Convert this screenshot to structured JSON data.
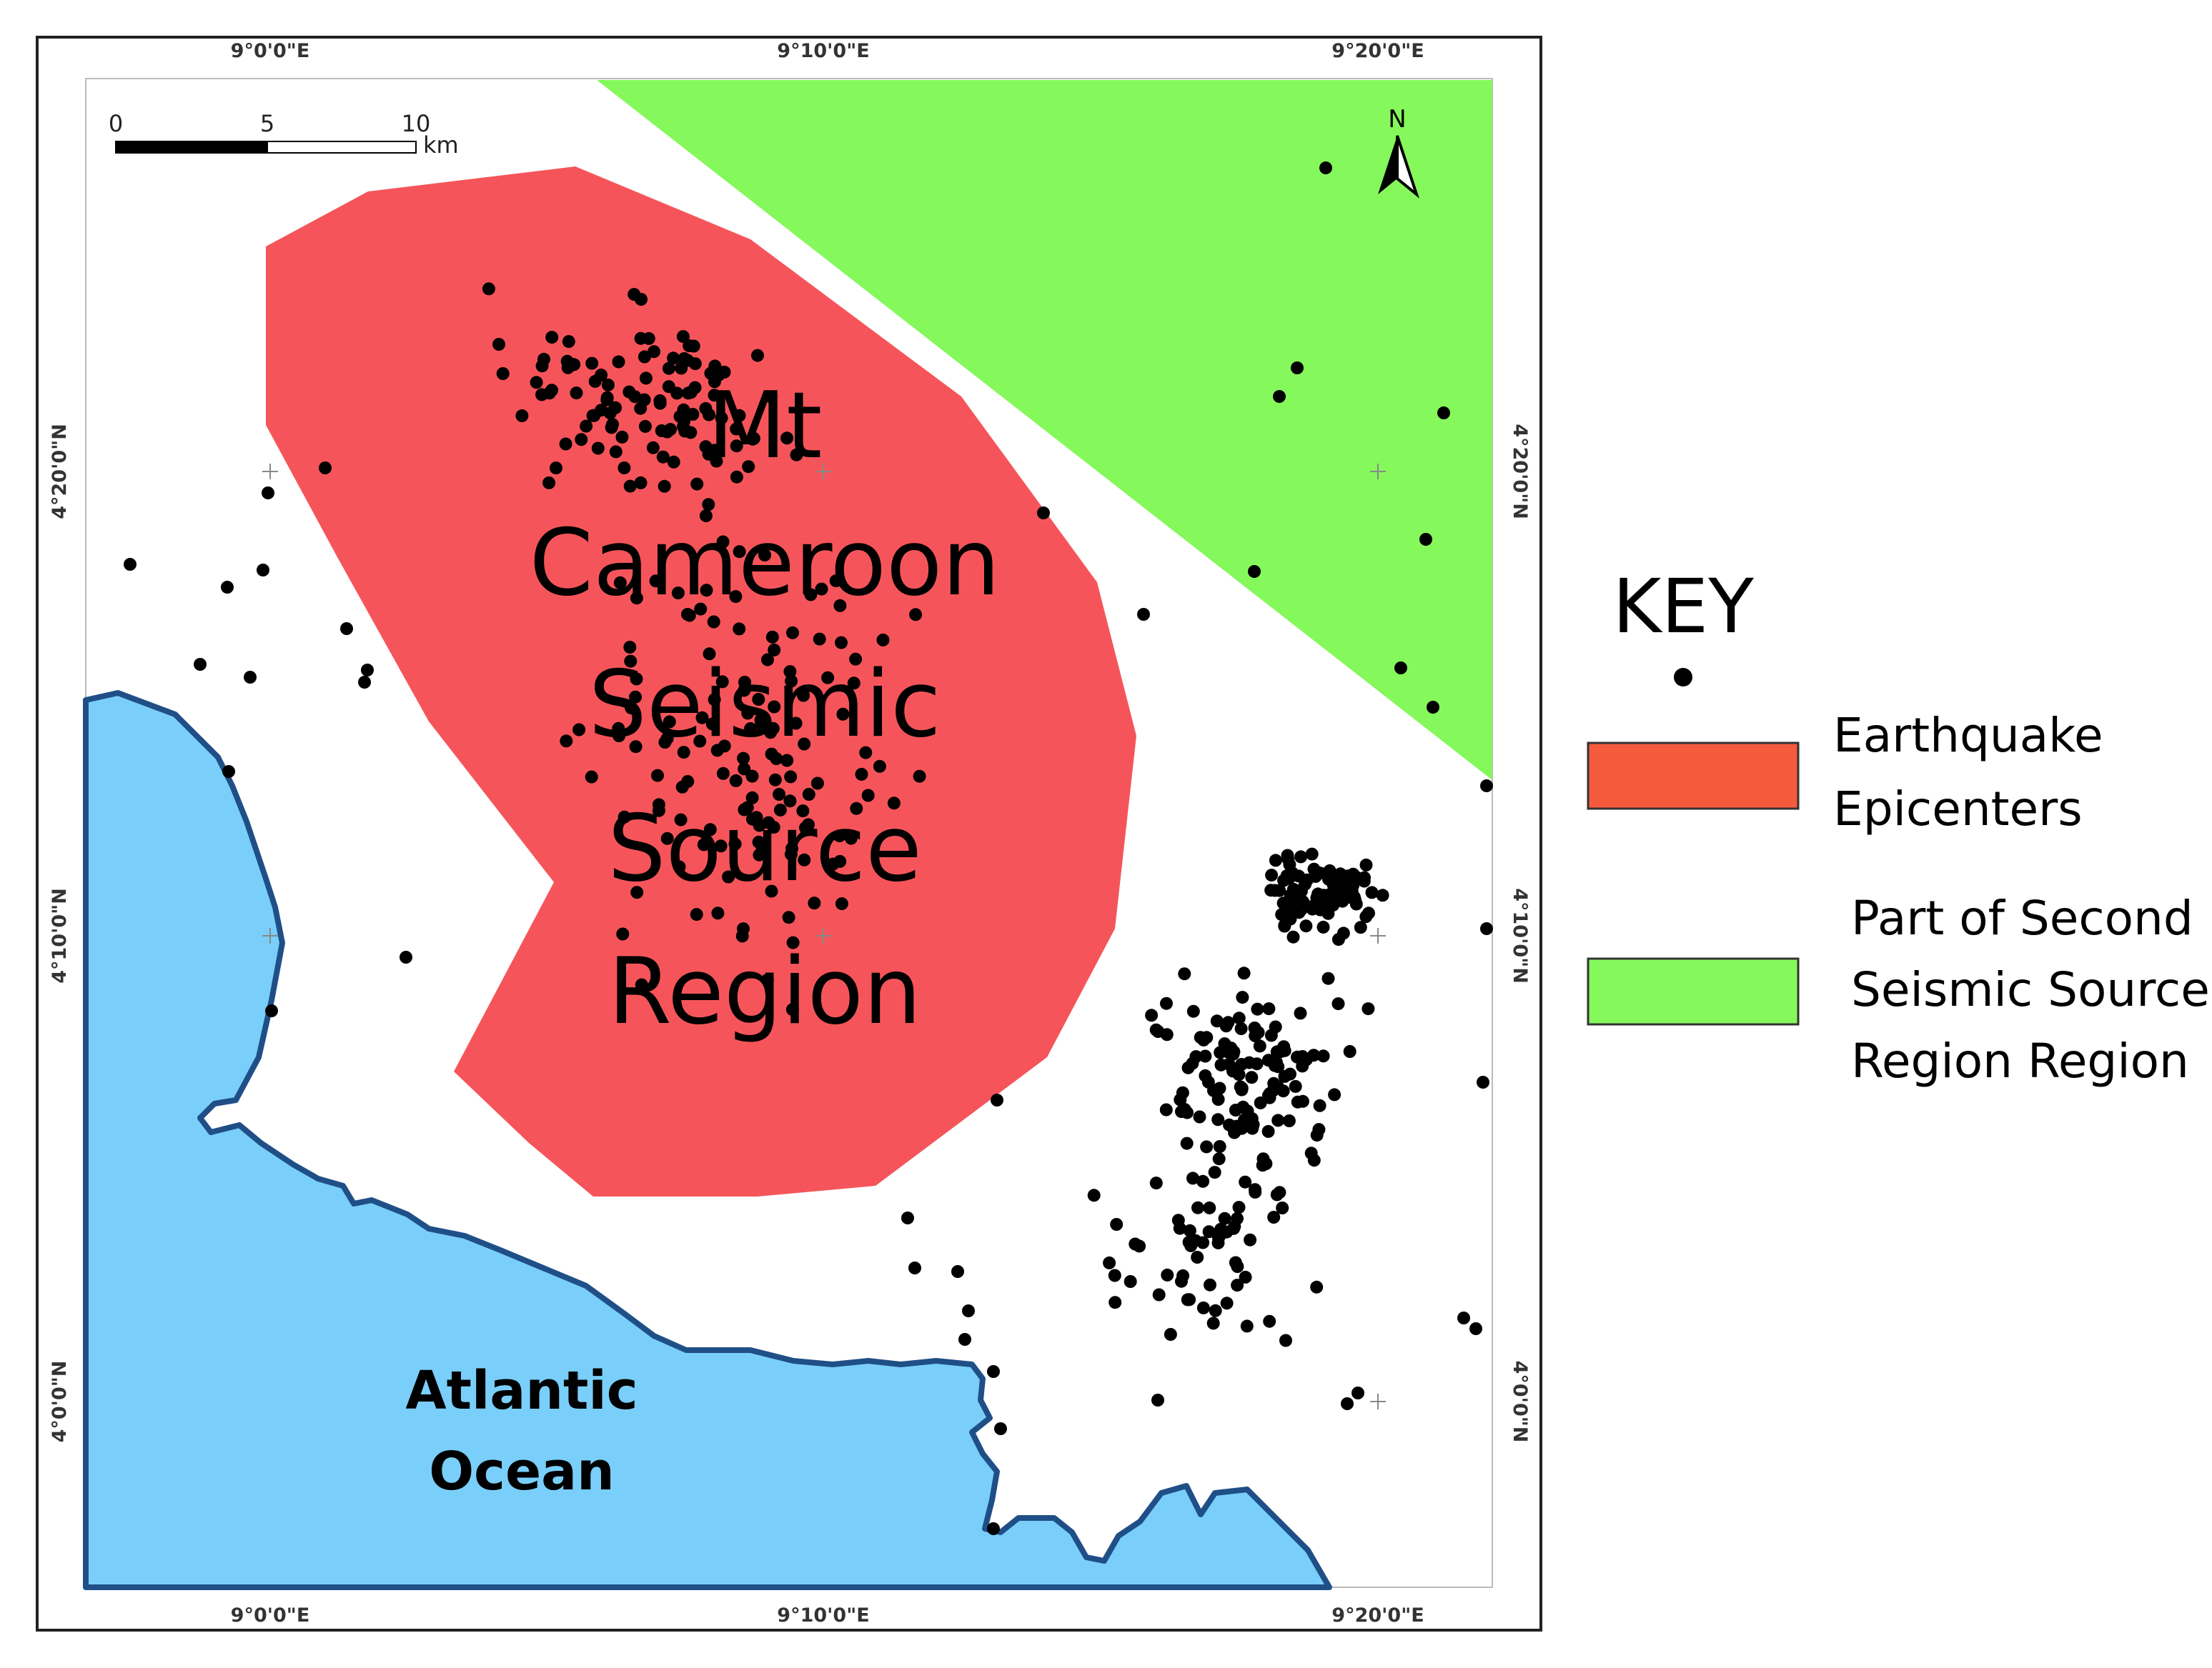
{
  "map": {
    "lon_labels": [
      "9°0'0\"E",
      "9°10'0\"E",
      "9°20'0\"E"
    ],
    "lat_labels": [
      "4°20'0\"N",
      "4°10'0\"N",
      "4°0'0\"N"
    ],
    "scale_bar": {
      "ticks": [
        "0",
        "5",
        "10"
      ],
      "unit": "km"
    },
    "north_arrow": "N",
    "regions": {
      "mt_cameroon": {
        "label_lines": [
          "Mt",
          "Cameroon",
          "Seismic",
          "Source",
          "Region"
        ],
        "color": "#F5555A"
      },
      "second_region": {
        "color": "#85F85C"
      },
      "ocean": {
        "label_lines": [
          "Atlantic",
          "Ocean"
        ],
        "color": "#7ACFFA",
        "outline_color": "#1F4F86"
      }
    },
    "epicenter_color": "#000000"
  },
  "key": {
    "title": "KEY",
    "items": [
      {
        "label_lines": [
          "Earthquake",
          "Epicenters"
        ],
        "swatch_color": "#F55A3C"
      },
      {
        "label_lines": [
          "Part of Second",
          "Seismic Source",
          "Region Region"
        ],
        "swatch_color": "#85F85C"
      }
    ]
  }
}
